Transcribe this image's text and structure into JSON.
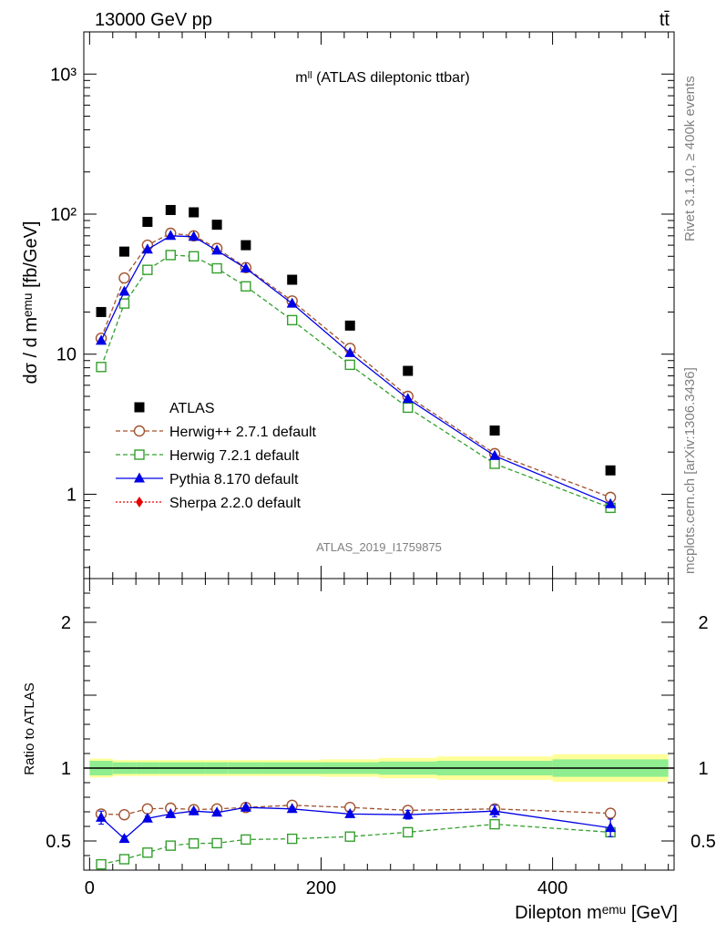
{
  "header": {
    "beam": "13000 GeV pp",
    "process": "tt̄"
  },
  "side_labels": {
    "rivet": "Rivet 3.1.10, ≥ 400k events",
    "mcplots": "mcplots.cern.ch [arXiv:1306.3436]"
  },
  "chart_data": [
    {
      "type": "scatter",
      "title": "mˡˡ (ATLAS dileptonic ttbar)",
      "ylabel": "dσ / d mᵉᵐᵘ [fb/GeV]",
      "yscale": "log",
      "ylim": [
        0.25,
        2000
      ],
      "xlim": [
        -5,
        505
      ],
      "y_tick_labels": [
        "1",
        "10",
        "10²",
        "10³"
      ],
      "analysis_label": "ATLAS_2019_I1759875",
      "legend_position": "bottom-left",
      "x": [
        10,
        30,
        50,
        70,
        90,
        110,
        135,
        175,
        225,
        275,
        350,
        450
      ],
      "series": [
        {
          "name": "ATLAS",
          "color": "#000000",
          "marker": "square-filled",
          "line": "none",
          "values": [
            20,
            54,
            88,
            107,
            103,
            84,
            60,
            34,
            16,
            7.6,
            2.85,
            1.48
          ]
        },
        {
          "name": "Herwig++ 2.7.1 default",
          "color": "#a0522d",
          "marker": "circle-open",
          "line": "dashed",
          "values": [
            13,
            35,
            60,
            73,
            70,
            57,
            41.5,
            24,
            11,
            5.0,
            1.95,
            0.95
          ]
        },
        {
          "name": "Herwig 7.2.1 default",
          "color": "#33a02c",
          "marker": "square-open",
          "line": "dashed",
          "values": [
            8.1,
            23,
            40,
            51,
            50,
            41,
            30.5,
            17.5,
            8.4,
            4.15,
            1.65,
            0.8
          ]
        },
        {
          "name": "Pythia 8.170 default",
          "color": "#0000e6",
          "marker": "triangle-filled",
          "line": "solid",
          "values": [
            12.5,
            28,
            56,
            70,
            69,
            55,
            41,
            23,
            10.2,
            4.8,
            1.88,
            0.85
          ]
        },
        {
          "name": "Sherpa 2.2.0 default",
          "color": "#e60000",
          "marker": "diamond-filled",
          "line": "dotted",
          "values": []
        }
      ]
    },
    {
      "type": "scatter",
      "ylabel": "Ratio to ATLAS",
      "xlabel": "Dilepton mᵉᵐᵘ [GeV]",
      "ylim": [
        0.3,
        2.3
      ],
      "xlim": [
        -5,
        505
      ],
      "x_tick_labels": [
        "0",
        "200",
        "400"
      ],
      "y_tick_labels": [
        "0.5",
        "1",
        "2"
      ],
      "x": [
        10,
        30,
        50,
        70,
        90,
        110,
        135,
        175,
        225,
        275,
        350,
        450
      ],
      "band_edges": [
        0,
        20,
        40,
        60,
        80,
        100,
        120,
        150,
        200,
        250,
        300,
        400,
        500
      ],
      "band_inner": [
        0.05,
        0.04,
        0.04,
        0.04,
        0.04,
        0.04,
        0.04,
        0.04,
        0.04,
        0.045,
        0.05,
        0.06
      ],
      "band_outer": [
        0.065,
        0.055,
        0.055,
        0.055,
        0.055,
        0.055,
        0.055,
        0.055,
        0.06,
        0.07,
        0.08,
        0.095
      ],
      "band_colors": {
        "inner": "#90ee90",
        "outer": "#ffff99"
      },
      "series": [
        {
          "name": "Herwig++ 2.7.1 default",
          "color": "#a0522d",
          "marker": "circle-open",
          "line": "dashed",
          "values": [
            0.685,
            0.68,
            0.72,
            0.725,
            0.715,
            0.72,
            0.73,
            0.745,
            0.73,
            0.71,
            0.72,
            0.69
          ],
          "errors": [
            0,
            0,
            0,
            0,
            0,
            0,
            0,
            0,
            0,
            0,
            0,
            0.03
          ]
        },
        {
          "name": "Herwig 7.2.1 default",
          "color": "#33a02c",
          "marker": "square-open",
          "line": "dashed",
          "values": [
            0.34,
            0.375,
            0.42,
            0.468,
            0.483,
            0.485,
            0.51,
            0.515,
            0.53,
            0.56,
            0.615,
            0.56
          ],
          "errors": [
            0,
            0,
            0,
            0,
            0,
            0,
            0,
            0,
            0,
            0,
            0,
            0.03
          ]
        },
        {
          "name": "Pythia 8.170 default",
          "color": "#0000e6",
          "marker": "triangle-filled",
          "line": "solid",
          "values": [
            0.66,
            0.515,
            0.655,
            0.685,
            0.705,
            0.695,
            0.73,
            0.72,
            0.685,
            0.68,
            0.705,
            0.59
          ],
          "errors": [
            0.045,
            0.02,
            0.015,
            0.012,
            0.012,
            0.012,
            0.01,
            0.012,
            0.02,
            0.03,
            0.04,
            0.06
          ]
        }
      ]
    }
  ]
}
